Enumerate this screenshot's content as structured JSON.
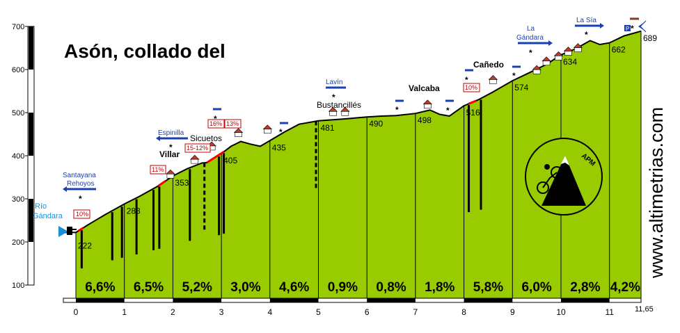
{
  "title": "Asón, collado del",
  "brand": "www.altimetrias.com",
  "logo_text": "APM",
  "colors": {
    "fill": "#99cc00",
    "line": "#000000",
    "road": "#1a3fb0",
    "gradient_mark": "#ff0000",
    "river": "#1a8fd6"
  },
  "chart_data": {
    "type": "area",
    "title": "Asón, collado del",
    "xlabel": "",
    "ylabel": "",
    "xlim": [
      0,
      11.65
    ],
    "ylim": [
      100,
      700
    ],
    "y_ticks": [
      100,
      200,
      300,
      400,
      500,
      600,
      700
    ],
    "x_ticks": [
      "0",
      "1",
      "2",
      "3",
      "4",
      "5",
      "6",
      "7",
      "8",
      "9",
      "10",
      "11"
    ],
    "x_end_label": "11,65",
    "profile": [
      [
        -0.3,
        222
      ],
      [
        0,
        222
      ],
      [
        0.3,
        243
      ],
      [
        0.6,
        263
      ],
      [
        1,
        288
      ],
      [
        1.3,
        305
      ],
      [
        1.7,
        330
      ],
      [
        2,
        353
      ],
      [
        2.3,
        370
      ],
      [
        2.6,
        383
      ],
      [
        2.7,
        384
      ],
      [
        2.85,
        395
      ],
      [
        3,
        405
      ],
      [
        3.2,
        422
      ],
      [
        3.4,
        433
      ],
      [
        3.6,
        427
      ],
      [
        3.8,
        422
      ],
      [
        4,
        435
      ],
      [
        4.3,
        455
      ],
      [
        4.6,
        473
      ],
      [
        5,
        481
      ],
      [
        5.5,
        485
      ],
      [
        6,
        490
      ],
      [
        6.3,
        492
      ],
      [
        6.6,
        493
      ],
      [
        7,
        498
      ],
      [
        7.3,
        506
      ],
      [
        7.5,
        496
      ],
      [
        7.7,
        492
      ],
      [
        8,
        516
      ],
      [
        8.3,
        530
      ],
      [
        8.6,
        548
      ],
      [
        9,
        574
      ],
      [
        9.3,
        590
      ],
      [
        9.7,
        612
      ],
      [
        10,
        634
      ],
      [
        10.3,
        648
      ],
      [
        10.6,
        667
      ],
      [
        10.8,
        658
      ],
      [
        11,
        662
      ],
      [
        11.3,
        678
      ],
      [
        11.65,
        689
      ]
    ],
    "km_markers": [
      {
        "km": 0,
        "elev": 222
      },
      {
        "km": 1,
        "elev": 288
      },
      {
        "km": 2,
        "elev": 353
      },
      {
        "km": 3,
        "elev": 405
      },
      {
        "km": 4,
        "elev": 435
      },
      {
        "km": 5,
        "elev": 481
      },
      {
        "km": 6,
        "elev": 490
      },
      {
        "km": 7,
        "elev": 498
      },
      {
        "km": 8,
        "elev": 516
      },
      {
        "km": 9,
        "elev": 574
      },
      {
        "km": 10,
        "elev": 634
      },
      {
        "km": 11,
        "elev": 662
      },
      {
        "km": 11.65,
        "elev": 689
      }
    ],
    "gradients": [
      "6,6%",
      "6,5%",
      "5,2%",
      "3,0%",
      "4,6%",
      "0,9%",
      "0,8%",
      "1,8%",
      "5,8%",
      "6,0%",
      "2,8%",
      "4,2%"
    ],
    "annotations": {
      "places": [
        {
          "text": "Villar",
          "bold": true
        },
        {
          "text": "Sicuetos",
          "bold": false
        },
        {
          "text": "Bustancillés",
          "bold": false
        },
        {
          "text": "Valcaba",
          "bold": true
        },
        {
          "text": "Cañedo",
          "bold": true
        }
      ],
      "road_labels": [
        {
          "lines": [
            "Santayana",
            "Rehoyos"
          ]
        },
        {
          "lines": [
            "Espinilla"
          ]
        },
        {
          "lines": [
            "Lavín"
          ]
        },
        {
          "lines": [
            "La",
            "Gándara"
          ]
        },
        {
          "lines": [
            "La Sía"
          ]
        }
      ],
      "river": [
        "Río",
        "Gándara"
      ],
      "badges": [
        "10%",
        "11%",
        "15-12%",
        "16%",
        "13%",
        "10%"
      ]
    }
  }
}
